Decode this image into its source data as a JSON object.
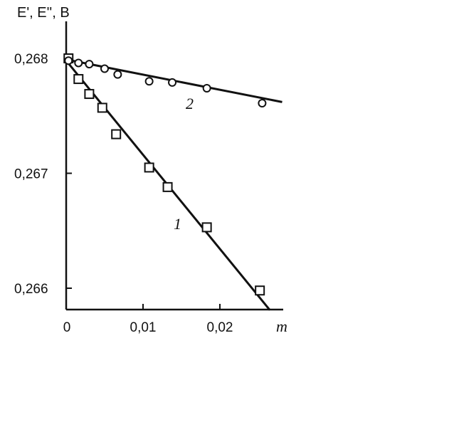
{
  "chart_data": {
    "type": "scatter",
    "title": "",
    "ylabel": "E', E'', B",
    "xlabel": "m",
    "xlim": [
      0,
      0.0275
    ],
    "ylim": [
      0.26583,
      0.26844
    ],
    "xticks": [
      {
        "value": 0,
        "label": "0"
      },
      {
        "value": 0.01,
        "label": "0,01"
      },
      {
        "value": 0.02,
        "label": "0,02"
      }
    ],
    "yticks": [
      {
        "value": 0.266,
        "label": "0,266"
      },
      {
        "value": 0.267,
        "label": "0,267"
      },
      {
        "value": 0.268,
        "label": "0,268"
      }
    ],
    "grid": false,
    "legend": "none",
    "series": [
      {
        "label": "1",
        "marker": "square",
        "points": [
          {
            "x": 0.0003,
            "y": 0.268
          },
          {
            "x": 0.0016,
            "y": 0.26782
          },
          {
            "x": 0.003,
            "y": 0.26769
          },
          {
            "x": 0.0047,
            "y": 0.26757
          },
          {
            "x": 0.0065,
            "y": 0.26734
          },
          {
            "x": 0.0108,
            "y": 0.26705
          },
          {
            "x": 0.0132,
            "y": 0.26688
          },
          {
            "x": 0.0183,
            "y": 0.26653
          },
          {
            "x": 0.0252,
            "y": 0.26598
          }
        ],
        "line": [
          {
            "x": 0.0,
            "y": 0.26798
          },
          {
            "x": 0.0265,
            "y": 0.26581
          }
        ]
      },
      {
        "label": "2",
        "marker": "circle",
        "points": [
          {
            "x": 0.0003,
            "y": 0.26798
          },
          {
            "x": 0.0016,
            "y": 0.26796
          },
          {
            "x": 0.003,
            "y": 0.26795
          },
          {
            "x": 0.005,
            "y": 0.26791
          },
          {
            "x": 0.0067,
            "y": 0.26786
          },
          {
            "x": 0.0108,
            "y": 0.2678
          },
          {
            "x": 0.0138,
            "y": 0.26779
          },
          {
            "x": 0.0183,
            "y": 0.26774
          },
          {
            "x": 0.0255,
            "y": 0.26761
          }
        ],
        "line": [
          {
            "x": 0.0,
            "y": 0.26799
          },
          {
            "x": 0.0281,
            "y": 0.26762
          }
        ]
      }
    ]
  }
}
